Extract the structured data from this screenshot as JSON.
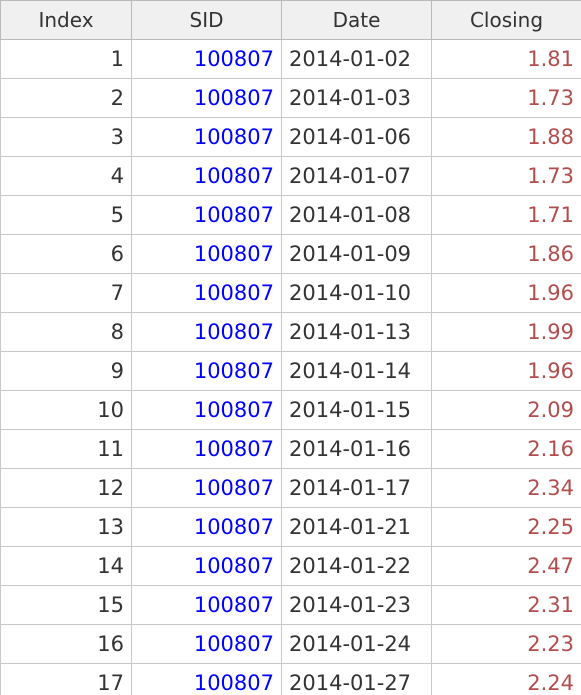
{
  "table": {
    "columns": [
      "Index",
      "SID",
      "Date",
      "Closing"
    ],
    "rows": [
      [
        "1",
        "100807",
        "2014-01-02",
        "1.81"
      ],
      [
        "2",
        "100807",
        "2014-01-03",
        "1.73"
      ],
      [
        "3",
        "100807",
        "2014-01-06",
        "1.88"
      ],
      [
        "4",
        "100807",
        "2014-01-07",
        "1.73"
      ],
      [
        "5",
        "100807",
        "2014-01-08",
        "1.71"
      ],
      [
        "6",
        "100807",
        "2014-01-09",
        "1.86"
      ],
      [
        "7",
        "100807",
        "2014-01-10",
        "1.96"
      ],
      [
        "8",
        "100807",
        "2014-01-13",
        "1.99"
      ],
      [
        "9",
        "100807",
        "2014-01-14",
        "1.96"
      ],
      [
        "10",
        "100807",
        "2014-01-15",
        "2.09"
      ],
      [
        "11",
        "100807",
        "2014-01-16",
        "2.16"
      ],
      [
        "12",
        "100807",
        "2014-01-17",
        "2.34"
      ],
      [
        "13",
        "100807",
        "2014-01-21",
        "2.25"
      ],
      [
        "14",
        "100807",
        "2014-01-22",
        "2.47"
      ],
      [
        "15",
        "100807",
        "2014-01-23",
        "2.31"
      ],
      [
        "16",
        "100807",
        "2014-01-24",
        "2.23"
      ]
    ],
    "partial_row": [
      "17",
      "100807",
      "2014-01-27",
      "2.24"
    ]
  },
  "colors": {
    "sid": "#0000ff",
    "closing": "#b34d4d",
    "header_bg": "#f0f0f0",
    "grid_line": "#c8c8c8"
  }
}
